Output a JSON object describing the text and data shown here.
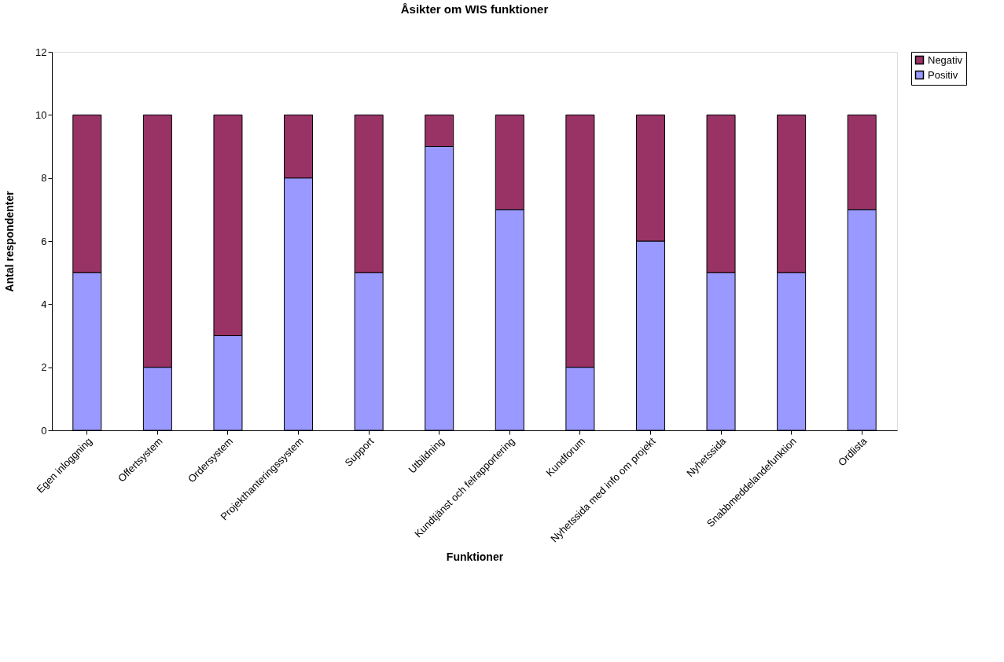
{
  "chart_data": {
    "type": "bar",
    "title": "Åsikter om WIS funktioner",
    "xlabel": "Funktioner",
    "ylabel": "Antal respondenter",
    "categories": [
      "Egen inloggning",
      "Offertsystem",
      "Ordersystem",
      "Projekthanteringssystem",
      "Support",
      "Utbildning",
      "Kundtjänst och felrapportering",
      "Kundforum",
      "Nyhetssida med info om projekt",
      "Nyhetssida",
      "Snabbmeddelandefunktion",
      "Ordlista"
    ],
    "series": [
      {
        "name": "Positiv",
        "color": "#9999ff",
        "values": [
          5,
          2,
          3,
          8,
          5,
          9,
          7,
          2,
          6,
          5,
          5,
          7
        ]
      },
      {
        "name": "Negativ",
        "color": "#993366",
        "values": [
          5,
          8,
          7,
          2,
          5,
          1,
          3,
          8,
          4,
          5,
          5,
          3
        ]
      }
    ],
    "stacked": true,
    "ylim": [
      0,
      12
    ],
    "yticks": [
      0,
      2,
      4,
      6,
      8,
      10,
      12
    ],
    "grid": false,
    "legend": "right"
  }
}
